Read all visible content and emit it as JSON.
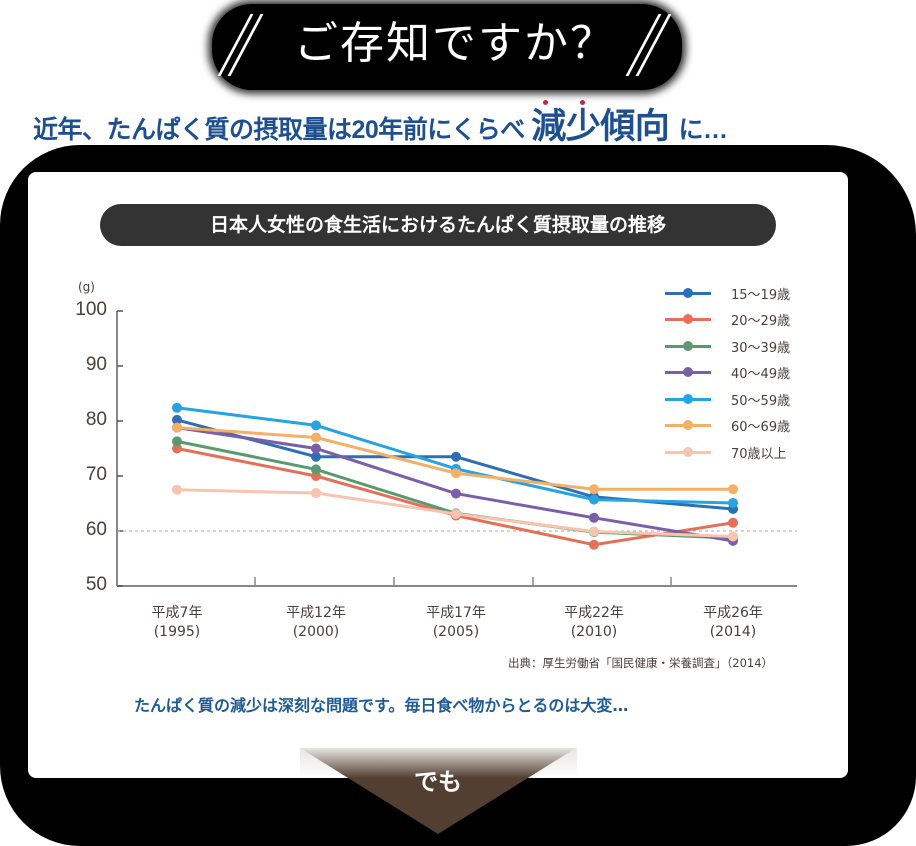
{
  "header": {
    "headline": "ご存知ですか？",
    "subline_prefix": "近年、たんぱく質の摂取量は20年前にくらべ",
    "subline_emphasis": "減少傾向",
    "subline_suffix": "に…"
  },
  "colors": {
    "headline_bg": "#000000",
    "subline_text": "#1e4f8f",
    "emphasis_dot": "#c0274a",
    "title_pill_bg": "#333333",
    "note_text": "#1e5b94",
    "arrow": "#523f32"
  },
  "chart_title": "日本人女性の食生活におけるたんぱく質摂取量の推移",
  "source": "出典：厚生労働省「国民健康・栄養調査」（2014）",
  "note": "たんぱく質の減少は深刻な問題です。毎日食べ物からとるのは大変…",
  "arrow_label": "でも",
  "chart_data": {
    "type": "line",
    "title": "日本人女性の食生活におけるたんぱく質摂取量の推移",
    "xlabel": "",
    "ylabel": "(g)",
    "ylim": [
      50,
      100
    ],
    "yticks": [
      100,
      90,
      80,
      70,
      60,
      50
    ],
    "reference_line": 60,
    "grid": false,
    "legend_position": "top-right",
    "categories": [
      "平成7年\n(1995)",
      "平成12年\n(2000)",
      "平成17年\n(2005)",
      "平成22年\n(2010)",
      "平成26年\n(2014)"
    ],
    "category_lines": [
      [
        "平成7年",
        "(1995)"
      ],
      [
        "平成12年",
        "(2000)"
      ],
      [
        "平成17年",
        "(2005)"
      ],
      [
        "平成22年",
        "(2010)"
      ],
      [
        "平成26年",
        "(2014)"
      ]
    ],
    "series": [
      {
        "name": "15〜19歳",
        "color": "#2e6fb4",
        "values": [
          80.2,
          73.5,
          73.5,
          66.2,
          64.0
        ]
      },
      {
        "name": "20〜29歳",
        "color": "#e4705a",
        "values": [
          75.0,
          70.0,
          62.8,
          57.5,
          61.5
        ]
      },
      {
        "name": "30〜39歳",
        "color": "#5a9a70",
        "values": [
          76.3,
          71.2,
          63.2,
          59.8,
          58.7
        ]
      },
      {
        "name": "40〜49歳",
        "color": "#7a5fa8",
        "values": [
          78.8,
          75.0,
          66.8,
          62.4,
          58.2
        ]
      },
      {
        "name": "50〜59歳",
        "color": "#27a3e0",
        "values": [
          82.4,
          79.2,
          71.3,
          65.7,
          65.1
        ]
      },
      {
        "name": "60〜69歳",
        "color": "#f2b068",
        "values": [
          78.8,
          77.0,
          70.5,
          67.6,
          67.6
        ]
      },
      {
        "name": "70歳以上",
        "color": "#f7c4b0",
        "values": [
          67.5,
          66.9,
          63.1,
          59.9,
          59.0
        ]
      }
    ]
  }
}
